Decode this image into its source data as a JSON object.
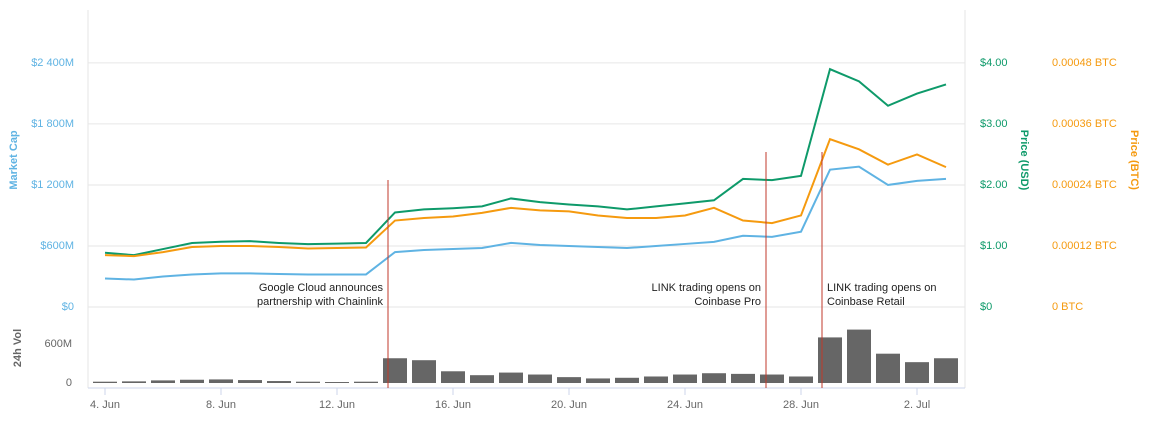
{
  "chart_data": [
    {
      "type": "line",
      "categories": [
        "4. Jun",
        null,
        null,
        null,
        "8. Jun",
        null,
        null,
        null,
        "12. Jun",
        null,
        null,
        null,
        "16. Jun",
        null,
        null,
        null,
        "20. Jun",
        null,
        null,
        null,
        "24. Jun",
        null,
        null,
        null,
        "28. Jun",
        null,
        null,
        null,
        "2. Jul",
        null
      ],
      "series": [
        {
          "name": "Market Cap",
          "color": "#5fb3e3",
          "axis": "y",
          "values": [
            280,
            270,
            300,
            320,
            330,
            330,
            325,
            320,
            320,
            320,
            540,
            560,
            570,
            580,
            630,
            610,
            600,
            590,
            580,
            600,
            620,
            640,
            700,
            690,
            740,
            1350,
            1380,
            1200,
            1240,
            1260
          ]
        },
        {
          "name": "Price (USD)",
          "color": "#0e9a6a",
          "axis": "y2",
          "values": [
            0.89,
            0.85,
            0.95,
            1.05,
            1.07,
            1.08,
            1.05,
            1.03,
            1.04,
            1.05,
            1.55,
            1.6,
            1.62,
            1.65,
            1.78,
            1.72,
            1.68,
            1.65,
            1.6,
            1.65,
            1.7,
            1.75,
            2.1,
            2.08,
            2.15,
            3.9,
            3.7,
            3.3,
            3.5,
            3.65
          ]
        },
        {
          "name": "Price (BTC)",
          "color": "#f59a0f",
          "axis": "y3",
          "values": [
            0.000102,
            0.0001,
            0.000108,
            0.000118,
            0.00012,
            0.00012,
            0.000118,
            0.000115,
            0.000116,
            0.000117,
            0.00017,
            0.000175,
            0.000178,
            0.000185,
            0.000195,
            0.00019,
            0.000188,
            0.00018,
            0.000175,
            0.000175,
            0.00018,
            0.000195,
            0.00017,
            0.000165,
            0.00018,
            0.00033,
            0.00031,
            0.00028,
            0.0003,
            0.000275
          ]
        }
      ],
      "ylabel": "Market Cap",
      "y2label": "Price (USD)",
      "y3label": "Price (BTC)",
      "ylim": [
        0,
        2920
      ],
      "yticks": [
        {
          "value": 0,
          "label": "$0"
        },
        {
          "value": 600,
          "label": "$600M"
        },
        {
          "value": 1200,
          "label": "$1 200M"
        },
        {
          "value": 1800,
          "label": "$1 800M"
        },
        {
          "value": 2400,
          "label": "$2 400M"
        }
      ],
      "y2lim": [
        0,
        4.87
      ],
      "y2ticks": [
        {
          "value": 0,
          "label": "$0"
        },
        {
          "value": 1,
          "label": "$1.00"
        },
        {
          "value": 2,
          "label": "$2.00"
        },
        {
          "value": 3,
          "label": "$3.00"
        },
        {
          "value": 4,
          "label": "$4.00"
        }
      ],
      "y3lim": [
        0,
        0.000584
      ],
      "y3ticks": [
        {
          "value": 0,
          "label": "0 BTC"
        },
        {
          "value": 0.00012,
          "label": "0.00012 BTC"
        },
        {
          "value": 0.00024,
          "label": "0.00024 BTC"
        },
        {
          "value": 0.00036,
          "label": "0.00036 BTC"
        },
        {
          "value": 0.00048,
          "label": "0.00048 BTC"
        }
      ],
      "grid": true,
      "annotations": [
        {
          "lines": [
            "Google Cloud announces",
            "partnership with Chainlink"
          ]
        },
        {
          "lines": [
            "LINK trading opens on",
            "Coinbase Pro"
          ]
        },
        {
          "lines": [
            "LINK trading opens on",
            "Coinbase Retail"
          ]
        }
      ]
    },
    {
      "type": "bar",
      "ylabel": "24h Vol",
      "color": "#666666",
      "values": [
        20,
        25,
        40,
        50,
        55,
        45,
        30,
        20,
        15,
        20,
        380,
        350,
        180,
        120,
        160,
        130,
        90,
        70,
        80,
        100,
        130,
        150,
        140,
        130,
        100,
        700,
        820,
        450,
        320,
        380
      ],
      "ylim": [
        0,
        1090
      ],
      "yticks": [
        0,
        {
          "value": 600,
          "label": "600M"
        }
      ]
    }
  ]
}
